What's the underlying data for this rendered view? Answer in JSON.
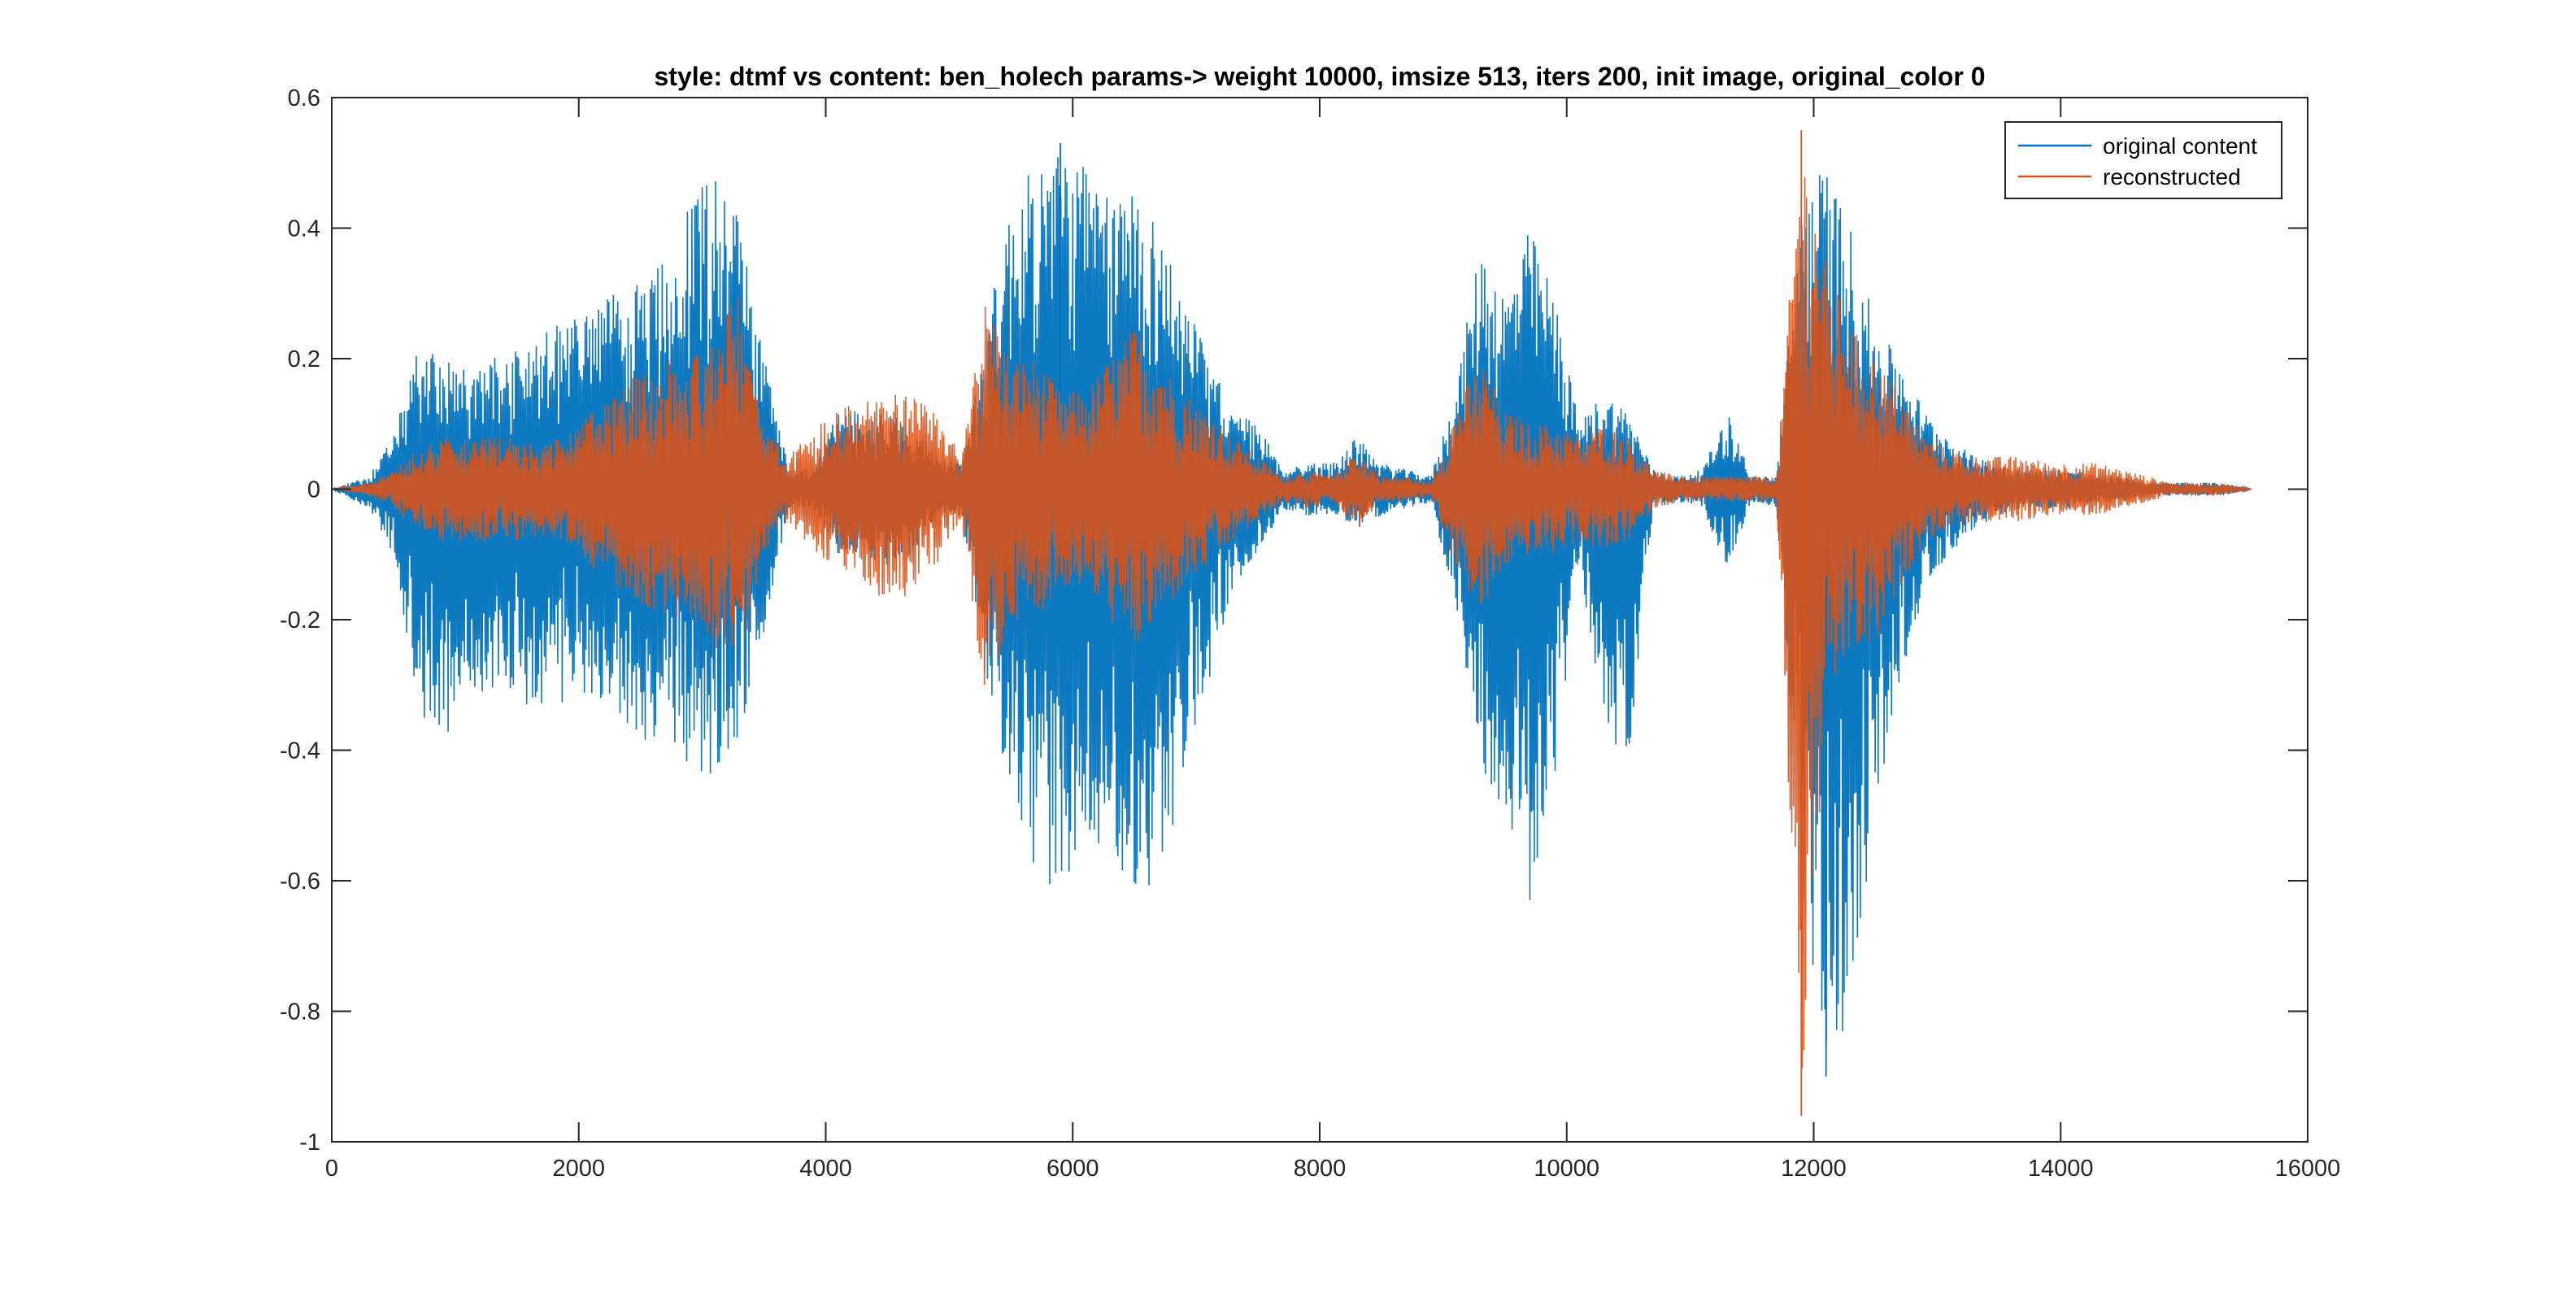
{
  "chart_data": {
    "type": "line",
    "title": "style: dtmf vs content: ben_holech  params-> weight 10000, imsize 513, iters 200, init image, original_color 0",
    "xlabel": "",
    "ylabel": "",
    "xlim": [
      0,
      16000
    ],
    "ylim": [
      -1,
      0.6
    ],
    "xticks": [
      0,
      2000,
      4000,
      6000,
      8000,
      10000,
      12000,
      14000,
      16000
    ],
    "xtick_labels": [
      "0",
      "2000",
      "4000",
      "6000",
      "8000",
      "10000",
      "12000",
      "14000",
      "16000"
    ],
    "yticks": [
      0.6,
      0.4,
      0.2,
      0,
      -0.2,
      -0.4,
      -0.6,
      -0.8,
      -1
    ],
    "ytick_labels": [
      "0.6",
      "0.4",
      "0.2",
      "0",
      "-0.2",
      "-0.4",
      "-0.6",
      "-0.8",
      "-1"
    ],
    "grid": false,
    "legend_position": "top-right",
    "x": [
      0,
      300,
      500,
      700,
      900,
      1100,
      1300,
      1500,
      1700,
      1900,
      2100,
      2300,
      2500,
      2700,
      2900,
      3100,
      3300,
      3500,
      3700,
      3900,
      4100,
      4300,
      4500,
      4700,
      4900,
      5100,
      5300,
      5500,
      5700,
      5900,
      6100,
      6300,
      6500,
      6700,
      6900,
      7100,
      7300,
      7500,
      7700,
      7900,
      8100,
      8300,
      8500,
      8700,
      8900,
      9100,
      9300,
      9500,
      9700,
      9900,
      10100,
      10300,
      10500,
      10700,
      10900,
      11100,
      11300,
      11500,
      11700,
      11900,
      12100,
      12300,
      12500,
      12700,
      12900,
      13100,
      13300,
      13500,
      13700,
      13900,
      14100,
      14300,
      14500,
      14700,
      14900,
      15100,
      15300,
      15550
    ],
    "series": [
      {
        "name": "original content",
        "color": "#0072BD",
        "envelope_max": [
          0,
          0.02,
          0.08,
          0.22,
          0.2,
          0.18,
          0.2,
          0.22,
          0.24,
          0.26,
          0.28,
          0.3,
          0.32,
          0.35,
          0.45,
          0.5,
          0.42,
          0.22,
          0.03,
          0.03,
          0.12,
          0.12,
          0.12,
          0.1,
          0.05,
          0.04,
          0.25,
          0.44,
          0.5,
          0.53,
          0.5,
          0.44,
          0.48,
          0.4,
          0.3,
          0.2,
          0.12,
          0.1,
          0.03,
          0.04,
          0.04,
          0.08,
          0.04,
          0.03,
          0.02,
          0.15,
          0.38,
          0.3,
          0.4,
          0.3,
          0.1,
          0.15,
          0.12,
          0.03,
          0.02,
          0.03,
          0.12,
          0.02,
          0.02,
          0.45,
          0.5,
          0.4,
          0.25,
          0.2,
          0.12,
          0.08,
          0.05,
          0.04,
          0.03,
          0.03,
          0.03,
          0.02,
          0.02,
          0.01,
          0.01,
          0.01,
          0.01,
          0
        ],
        "envelope_min": [
          0,
          -0.03,
          -0.1,
          -0.34,
          -0.4,
          -0.3,
          -0.32,
          -0.33,
          -0.33,
          -0.33,
          -0.32,
          -0.35,
          -0.38,
          -0.4,
          -0.43,
          -0.44,
          -0.4,
          -0.22,
          -0.03,
          -0.03,
          -0.1,
          -0.1,
          -0.12,
          -0.1,
          -0.05,
          -0.04,
          -0.3,
          -0.5,
          -0.6,
          -0.63,
          -0.55,
          -0.55,
          -0.66,
          -0.6,
          -0.45,
          -0.3,
          -0.15,
          -0.1,
          -0.03,
          -0.04,
          -0.04,
          -0.06,
          -0.04,
          -0.03,
          -0.02,
          -0.18,
          -0.42,
          -0.5,
          -0.65,
          -0.45,
          -0.12,
          -0.35,
          -0.45,
          -0.03,
          -0.02,
          -0.03,
          -0.12,
          -0.02,
          -0.03,
          -0.6,
          -0.9,
          -0.8,
          -0.5,
          -0.3,
          -0.15,
          -0.1,
          -0.06,
          -0.04,
          -0.03,
          -0.03,
          -0.03,
          -0.02,
          -0.02,
          -0.01,
          -0.01,
          -0.01,
          -0.01,
          0
        ]
      },
      {
        "name": "reconstructed",
        "color": "#D95319",
        "envelope_max": [
          0,
          0.01,
          0.03,
          0.06,
          0.08,
          0.08,
          0.08,
          0.08,
          0.07,
          0.08,
          0.12,
          0.15,
          0.18,
          0.2,
          0.2,
          0.25,
          0.3,
          0.1,
          0.05,
          0.1,
          0.12,
          0.14,
          0.15,
          0.14,
          0.12,
          0.05,
          0.3,
          0.2,
          0.2,
          0.15,
          0.15,
          0.2,
          0.25,
          0.2,
          0.15,
          0.12,
          0.08,
          0.05,
          0.02,
          0.03,
          0.02,
          0.06,
          0.02,
          0.02,
          0.01,
          0.12,
          0.2,
          0.12,
          0.1,
          0.1,
          0.08,
          0.1,
          0.08,
          0.03,
          0.02,
          0.02,
          0.02,
          0.02,
          0.02,
          0.55,
          0.35,
          0.25,
          0.2,
          0.15,
          0.08,
          0.06,
          0.05,
          0.05,
          0.05,
          0.04,
          0.04,
          0.04,
          0.03,
          0.02,
          0.01,
          0.01,
          0.01,
          0
        ],
        "envelope_min": [
          0,
          -0.01,
          -0.03,
          -0.06,
          -0.08,
          -0.08,
          -0.08,
          -0.08,
          -0.07,
          -0.08,
          -0.12,
          -0.15,
          -0.18,
          -0.2,
          -0.2,
          -0.25,
          -0.28,
          -0.1,
          -0.05,
          -0.1,
          -0.12,
          -0.14,
          -0.18,
          -0.16,
          -0.12,
          -0.05,
          -0.35,
          -0.2,
          -0.2,
          -0.15,
          -0.15,
          -0.2,
          -0.25,
          -0.2,
          -0.15,
          -0.12,
          -0.08,
          -0.05,
          -0.02,
          -0.03,
          -0.02,
          -0.06,
          -0.02,
          -0.02,
          -0.01,
          -0.12,
          -0.2,
          -0.12,
          -0.1,
          -0.1,
          -0.08,
          -0.1,
          -0.08,
          -0.03,
          -0.02,
          -0.02,
          -0.02,
          -0.02,
          -0.02,
          -0.96,
          -0.35,
          -0.25,
          -0.25,
          -0.15,
          -0.08,
          -0.06,
          -0.05,
          -0.05,
          -0.05,
          -0.04,
          -0.04,
          -0.04,
          -0.03,
          -0.02,
          -0.01,
          -0.01,
          -0.01,
          0
        ]
      }
    ]
  }
}
